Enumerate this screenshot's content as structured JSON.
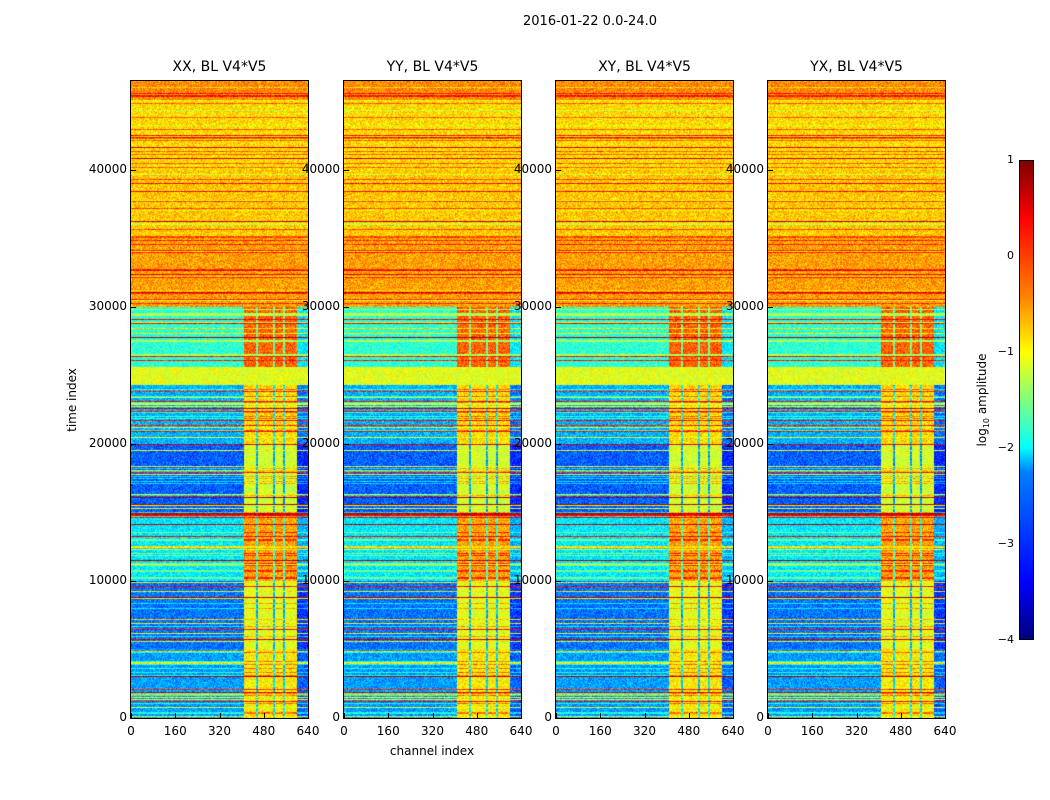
{
  "chart_data": {
    "type": "heatmap",
    "title": "2016-01-22 0.0-24.0",
    "xlabel": "channel index",
    "ylabel": "time index",
    "panels": [
      {
        "title": "XX, BL V4*V5"
      },
      {
        "title": "YY, BL V4*V5"
      },
      {
        "title": "XY, BL V4*V5"
      },
      {
        "title": "YX, BL V4*V5"
      }
    ],
    "xlim": [
      0,
      640
    ],
    "ylim": [
      0,
      46500
    ],
    "xticks": [
      "0",
      "160",
      "320",
      "480",
      "640"
    ],
    "xtick_values": [
      0,
      160,
      320,
      480,
      640
    ],
    "yticks": [
      "0",
      "10000",
      "20000",
      "30000",
      "40000"
    ],
    "ytick_values": [
      0,
      10000,
      20000,
      30000,
      40000
    ],
    "colorbar": {
      "label_prefix": "log",
      "label_sub": "10",
      "label_suffix": " amplitude",
      "range": [
        -4,
        1
      ],
      "ticks": [
        "1",
        "0",
        "−1",
        "−2",
        "−3",
        "−4"
      ],
      "tick_values": [
        1,
        0,
        -1,
        -2,
        -3,
        -4
      ],
      "colormap": "jet"
    },
    "time_profile_bins_per_5000": [
      -2.6,
      -2.8,
      -2.2,
      -2.9,
      -2.5,
      -1.9,
      -0.4,
      -0.6,
      -0.7,
      -0.3
    ],
    "bright_channel_range": [
      405,
      600
    ],
    "bright_channel_offset": 1.8
  }
}
